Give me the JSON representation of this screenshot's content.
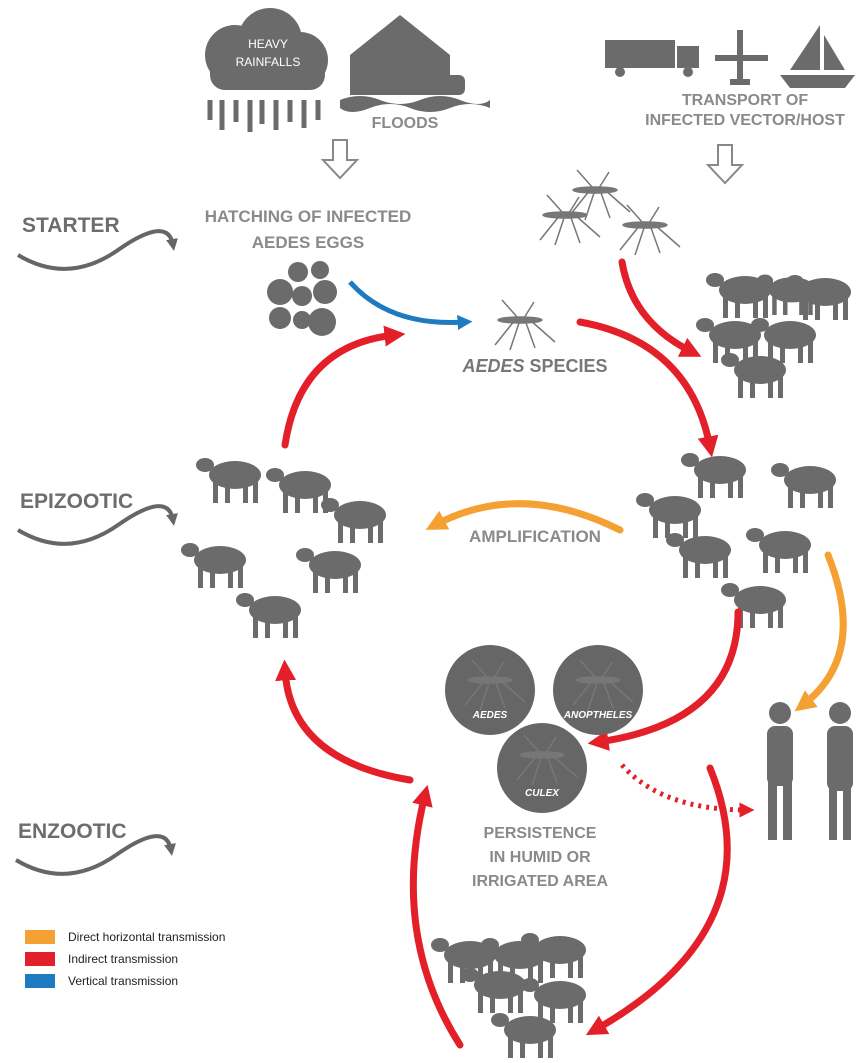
{
  "causes": {
    "rain": [
      "HEAVY",
      "RAINFALLS"
    ],
    "floods": "FLOODS",
    "transport": [
      "TRANSPORT OF",
      "INFECTED VECTOR/HOST"
    ]
  },
  "stages": {
    "starter": "STARTER",
    "epizootic": "EPIZOOTIC",
    "enzootic": "ENZOOTIC"
  },
  "hatching": [
    "HATCHING OF INFECTED",
    "AEDES EGGS"
  ],
  "aedes_species": {
    "italic": "AEDES",
    "rest": " SPECIES"
  },
  "amplification": "AMPLIFICATION",
  "vectors": [
    "AEDES",
    "ANOPTHELES",
    "CULEX"
  ],
  "persistence": [
    "PERSISTENCE",
    "IN HUMID OR",
    "IRRIGATED AREA"
  ],
  "legend": [
    {
      "label": "Direct horizontal transmission",
      "color": "#f5a033"
    },
    {
      "label": "Indirect transmission",
      "color": "#e3202a"
    },
    {
      "label": "Vertical transmission",
      "color": "#1f7bc1"
    }
  ]
}
